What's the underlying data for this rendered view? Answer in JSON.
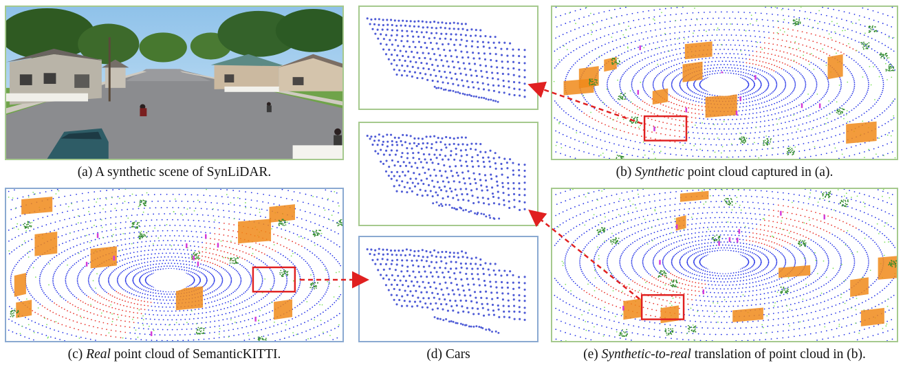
{
  "captions": {
    "a": {
      "prefix": "(a) A synthetic scene of SynLiDAR.",
      "emph": "",
      "suffix": ""
    },
    "b": {
      "prefix": "(b) ",
      "emph": "Synthetic",
      "suffix": " point cloud captured in (a)."
    },
    "c": {
      "prefix": "(c) ",
      "emph": "Real",
      "suffix": " point cloud of SemanticKITTI."
    },
    "d": {
      "prefix": "(d) Cars",
      "emph": "",
      "suffix": ""
    },
    "e": {
      "prefix": "(e) ",
      "emph": "Synthetic-to-real",
      "suffix": " translation of point cloud in (b)."
    }
  },
  "colors": {
    "ground": "#1f2ee6",
    "vegetation": "#7be05a",
    "sidewalk": "#e8322a",
    "building": "#f08a1a",
    "person": "#d43ad8",
    "tree": "#2e8a2a",
    "car": "#4e5bd6",
    "frame_green": "#a5c98d",
    "frame_blue": "#8aa9d1",
    "arrow": "#e02020",
    "highlight_box": "#e02020"
  }
}
